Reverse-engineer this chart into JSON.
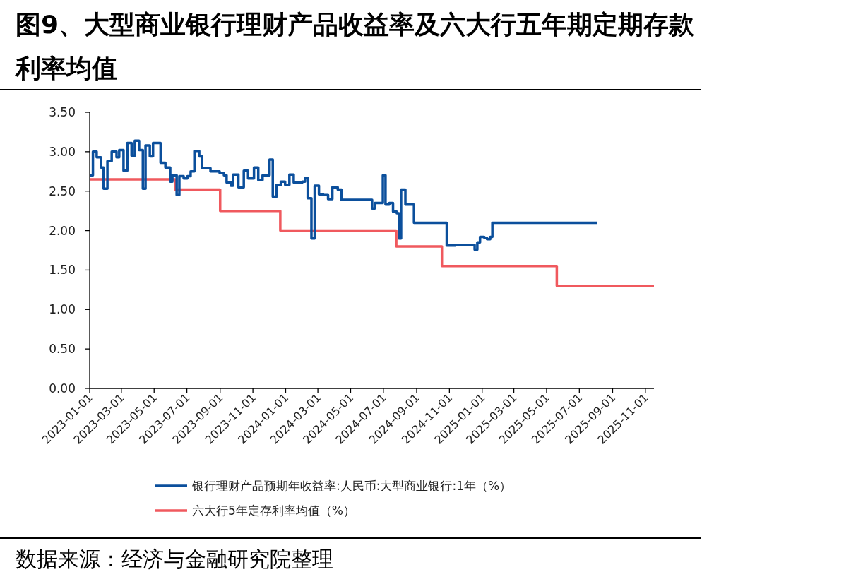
{
  "chart_data": {
    "type": "step",
    "title": "图9、大型商业银行理财产品收益率及六大行五年期定期存款利率均值",
    "annotations": [
      "数据来源：经济与金融研究院整理"
    ],
    "legend": "bottom",
    "xlim": [
      "2023-01-01",
      "2025-11-17"
    ],
    "ylim": [
      0,
      3.5
    ],
    "xticks": [
      "2023-01-01",
      "2023-03-01",
      "2023-05-01",
      "2023-07-01",
      "2023-09-01",
      "2023-11-01",
      "2024-01-01",
      "2024-03-01",
      "2024-05-01",
      "2024-07-01",
      "2024-09-01",
      "2024-11-01",
      "2025-01-01",
      "2025-03-01",
      "2025-05-01",
      "2025-07-01",
      "2025-09-01",
      "2025-11-01"
    ],
    "yticks": [
      {
        "value": 0,
        "label": "0.00"
      },
      {
        "value": 0.5,
        "label": "0.50"
      },
      {
        "value": 1,
        "label": "1.00"
      },
      {
        "value": 1.5,
        "label": "1.50"
      },
      {
        "value": 2,
        "label": "2.00"
      },
      {
        "value": 2.5,
        "label": "2.50"
      },
      {
        "value": 3,
        "label": "3.00"
      },
      {
        "value": 3.5,
        "label": "3.50"
      }
    ],
    "series": [
      {
        "name": "银行理财产品预期年收益率:人民币:大型商业银行:1年（%）",
        "color": "#0b4f9c",
        "x": [
          "2023-01-01",
          "2023-01-07",
          "2023-01-14",
          "2023-01-22",
          "2023-01-27",
          "2023-02-03",
          "2023-02-11",
          "2023-02-20",
          "2023-02-25",
          "2023-03-05",
          "2023-03-12",
          "2023-03-20",
          "2023-03-26",
          "2023-04-03",
          "2023-04-10",
          "2023-04-15",
          "2023-04-23",
          "2023-04-29",
          "2023-05-13",
          "2023-05-22",
          "2023-05-31",
          "2023-06-04",
          "2023-06-12",
          "2023-06-17",
          "2023-06-25",
          "2023-07-02",
          "2023-07-08",
          "2023-07-15",
          "2023-07-24",
          "2023-07-29",
          "2023-08-14",
          "2023-08-31",
          "2023-09-08",
          "2023-09-13",
          "2023-09-21",
          "2023-09-25",
          "2023-10-05",
          "2023-10-15",
          "2023-10-23",
          "2023-11-03",
          "2023-11-11",
          "2023-11-19",
          "2023-12-02",
          "2023-12-08",
          "2023-12-15",
          "2023-12-23",
          "2023-12-31",
          "2024-01-08",
          "2024-01-16",
          "2024-02-01",
          "2024-02-06",
          "2024-02-11",
          "2024-02-18",
          "2024-02-24",
          "2024-03-03",
          "2024-03-11",
          "2024-03-20",
          "2024-03-28",
          "2024-04-07",
          "2024-04-14",
          "2024-06-10",
          "2024-06-15",
          "2024-06-30",
          "2024-07-05",
          "2024-07-12",
          "2024-07-19",
          "2024-07-26",
          "2024-07-30",
          "2024-08-03",
          "2024-08-11",
          "2024-08-27",
          "2024-10-27",
          "2024-11-12",
          "2024-12-18",
          "2024-12-23",
          "2024-12-28",
          "2025-01-05",
          "2025-01-10",
          "2025-01-16",
          "2025-01-20",
          "2025-08-03"
        ],
        "values": [
          2.7,
          3.0,
          2.93,
          2.8,
          2.53,
          2.88,
          3.0,
          2.93,
          3.02,
          2.76,
          3.11,
          2.95,
          3.14,
          3.02,
          2.53,
          3.08,
          2.94,
          3.11,
          2.86,
          2.8,
          2.62,
          2.7,
          2.45,
          2.69,
          2.66,
          2.69,
          2.75,
          3.01,
          2.94,
          2.79,
          2.75,
          2.73,
          2.7,
          2.61,
          2.57,
          2.71,
          2.55,
          2.76,
          2.66,
          2.8,
          2.64,
          2.7,
          2.9,
          2.43,
          2.58,
          2.62,
          2.58,
          2.71,
          2.61,
          2.62,
          2.67,
          2.41,
          1.9,
          2.57,
          2.46,
          2.45,
          2.4,
          2.55,
          2.52,
          2.39,
          2.28,
          2.35,
          2.7,
          2.33,
          2.35,
          2.24,
          2.22,
          1.9,
          2.52,
          2.33,
          2.1,
          1.81,
          1.82,
          1.76,
          1.85,
          1.92,
          1.91,
          1.89,
          1.92,
          2.1,
          2.1
        ]
      },
      {
        "name": "六大行5年定存利率均值（%）",
        "color": "#f0595e",
        "x": [
          "2023-01-01",
          "2023-06-09",
          "2023-09-01",
          "2023-12-22",
          "2024-07-25",
          "2024-10-18",
          "2025-05-20",
          "2025-11-17"
        ],
        "values": [
          2.65,
          2.52,
          2.25,
          2.0,
          1.8,
          1.55,
          1.3,
          1.3
        ]
      }
    ]
  }
}
